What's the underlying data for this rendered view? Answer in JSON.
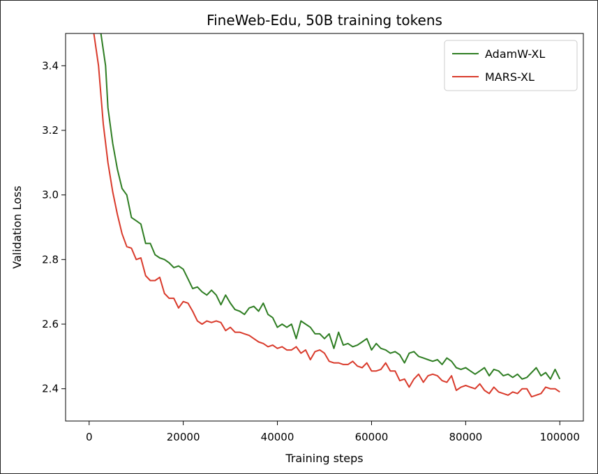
{
  "chart_data": {
    "type": "line",
    "title": "FineWeb-Edu, 50B training tokens",
    "xlabel": "Training steps",
    "ylabel": "Validation Loss",
    "xlim": [
      -5000,
      105000
    ],
    "ylim": [
      2.3,
      3.5
    ],
    "xticks": [
      0,
      20000,
      40000,
      60000,
      80000,
      100000
    ],
    "yticks": [
      2.4,
      2.6,
      2.8,
      3.0,
      3.2,
      3.4
    ],
    "xtick_labels": [
      "0",
      "20000",
      "40000",
      "60000",
      "80000",
      "100000"
    ],
    "ytick_labels": [
      "2.4",
      "2.6",
      "2.8",
      "3.0",
      "3.2",
      "3.4"
    ],
    "grid": false,
    "legend_position": "top-right",
    "series": [
      {
        "name": "AdamW-XL",
        "color": "#2e7d22",
        "x": [
          2500,
          3500,
          4000,
          5000,
          6000,
          7000,
          8000,
          9000,
          10000,
          11000,
          12000,
          13000,
          14000,
          15000,
          16000,
          17000,
          18000,
          19000,
          20000,
          21000,
          22000,
          23000,
          24000,
          25000,
          26000,
          27000,
          28000,
          29000,
          30000,
          31000,
          32000,
          33000,
          34000,
          35000,
          36000,
          37000,
          38000,
          39000,
          40000,
          41000,
          42000,
          43000,
          44000,
          45000,
          46000,
          47000,
          48000,
          49000,
          50000,
          51000,
          52000,
          53000,
          54000,
          55000,
          56000,
          57000,
          58000,
          59000,
          60000,
          61000,
          62000,
          63000,
          64000,
          65000,
          66000,
          67000,
          68000,
          69000,
          70000,
          71000,
          72000,
          73000,
          74000,
          75000,
          76000,
          77000,
          78000,
          79000,
          80000,
          81000,
          82000,
          83000,
          84000,
          85000,
          86000,
          87000,
          88000,
          89000,
          90000,
          91000,
          92000,
          93000,
          94000,
          95000,
          96000,
          97000,
          98000,
          99000,
          100000
        ],
        "values": [
          3.5,
          3.4,
          3.27,
          3.16,
          3.08,
          3.02,
          3.0,
          2.93,
          2.92,
          2.91,
          2.85,
          2.85,
          2.815,
          2.805,
          2.8,
          2.79,
          2.775,
          2.78,
          2.77,
          2.74,
          2.71,
          2.715,
          2.7,
          2.69,
          2.705,
          2.69,
          2.66,
          2.69,
          2.665,
          2.645,
          2.64,
          2.63,
          2.65,
          2.655,
          2.64,
          2.665,
          2.63,
          2.62,
          2.59,
          2.6,
          2.59,
          2.6,
          2.555,
          2.61,
          2.6,
          2.59,
          2.57,
          2.57,
          2.555,
          2.57,
          2.525,
          2.575,
          2.535,
          2.54,
          2.53,
          2.535,
          2.545,
          2.555,
          2.52,
          2.54,
          2.525,
          2.52,
          2.51,
          2.515,
          2.505,
          2.48,
          2.51,
          2.515,
          2.5,
          2.495,
          2.49,
          2.485,
          2.49,
          2.475,
          2.495,
          2.485,
          2.465,
          2.46,
          2.465,
          2.455,
          2.445,
          2.455,
          2.465,
          2.44,
          2.46,
          2.455,
          2.44,
          2.445,
          2.435,
          2.445,
          2.43,
          2.435,
          2.45,
          2.465,
          2.44,
          2.45,
          2.43,
          2.46,
          2.43
        ]
      },
      {
        "name": "MARS-XL",
        "color": "#d93a2b",
        "x": [
          1000,
          2000,
          3000,
          4000,
          5000,
          6000,
          7000,
          8000,
          9000,
          10000,
          11000,
          12000,
          13000,
          14000,
          15000,
          16000,
          17000,
          18000,
          19000,
          20000,
          21000,
          22000,
          23000,
          24000,
          25000,
          26000,
          27000,
          28000,
          29000,
          30000,
          31000,
          32000,
          33000,
          34000,
          35000,
          36000,
          37000,
          38000,
          39000,
          40000,
          41000,
          42000,
          43000,
          44000,
          45000,
          46000,
          47000,
          48000,
          49000,
          50000,
          51000,
          52000,
          53000,
          54000,
          55000,
          56000,
          57000,
          58000,
          59000,
          60000,
          61000,
          62000,
          63000,
          64000,
          65000,
          66000,
          67000,
          68000,
          69000,
          70000,
          71000,
          72000,
          73000,
          74000,
          75000,
          76000,
          77000,
          78000,
          79000,
          80000,
          81000,
          82000,
          83000,
          84000,
          85000,
          86000,
          87000,
          88000,
          89000,
          90000,
          91000,
          92000,
          93000,
          94000,
          95000,
          96000,
          97000,
          98000,
          99000,
          100000
        ],
        "values": [
          3.5,
          3.4,
          3.22,
          3.1,
          3.01,
          2.94,
          2.88,
          2.84,
          2.835,
          2.8,
          2.805,
          2.75,
          2.735,
          2.735,
          2.745,
          2.695,
          2.68,
          2.68,
          2.65,
          2.67,
          2.665,
          2.64,
          2.61,
          2.6,
          2.61,
          2.605,
          2.61,
          2.605,
          2.58,
          2.59,
          2.575,
          2.575,
          2.57,
          2.565,
          2.555,
          2.545,
          2.54,
          2.53,
          2.535,
          2.525,
          2.53,
          2.52,
          2.52,
          2.53,
          2.51,
          2.52,
          2.49,
          2.515,
          2.52,
          2.51,
          2.485,
          2.48,
          2.48,
          2.475,
          2.475,
          2.485,
          2.47,
          2.465,
          2.48,
          2.455,
          2.455,
          2.46,
          2.48,
          2.455,
          2.455,
          2.425,
          2.43,
          2.405,
          2.43,
          2.445,
          2.42,
          2.44,
          2.445,
          2.44,
          2.425,
          2.42,
          2.44,
          2.395,
          2.405,
          2.41,
          2.405,
          2.4,
          2.415,
          2.395,
          2.385,
          2.405,
          2.39,
          2.385,
          2.38,
          2.39,
          2.385,
          2.4,
          2.4,
          2.375,
          2.38,
          2.385,
          2.405,
          2.4,
          2.4,
          2.39
        ]
      }
    ]
  }
}
